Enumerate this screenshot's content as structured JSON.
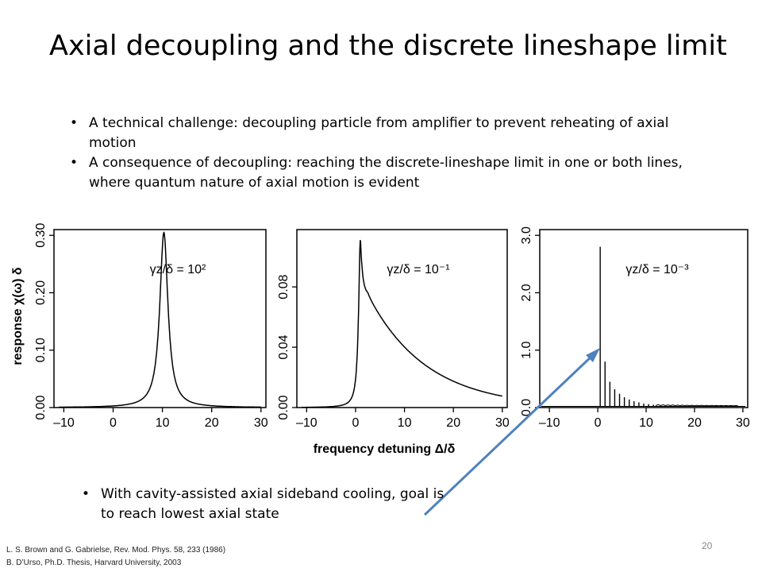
{
  "title": "Axial decoupling and the discrete lineshape limit",
  "bullets": [
    "A technical challenge: decoupling particle from amplifier to prevent reheating of axial motion",
    "A consequence of decoupling: reaching the discrete-lineshape limit in one or both lines, where quantum nature of axial motion is evident"
  ],
  "bullet_bottom": "With cavity-assisted axial sideband cooling, goal is to reach lowest axial state",
  "references": [
    "L. S. Brown and G. Gabrielse, Rev. Mod. Phys. 58, 233 (1986)",
    "B. D’Urso, Ph.D. Thesis, Harvard University, 2003"
  ],
  "page_number": "20",
  "colors": {
    "arrow": "#4f81bd",
    "curve": "#000000"
  },
  "chart_data": [
    {
      "type": "line",
      "ylabel": "response  χ(ω) δ",
      "xlabel": "frequency detuning  Δ/δ",
      "annotation": "γz/δ = 10²",
      "xlim": [
        -12,
        31
      ],
      "ylim": [
        0,
        0.31
      ],
      "x_ticks": [
        "–10",
        "0",
        "10",
        "20",
        "30"
      ],
      "y_ticks": [
        "0.00",
        "0.10",
        "0.20",
        "0.30"
      ],
      "y_tick_values": [
        0,
        0.1,
        0.2,
        0.3
      ],
      "series": [
        {
          "model": "lorentzian",
          "center": 10.3,
          "halfwidth": 1.0,
          "peak": 0.305
        }
      ]
    },
    {
      "type": "line",
      "annotation": "γz/δ = 10⁻¹",
      "xlim": [
        -12,
        31
      ],
      "ylim": [
        0,
        0.118
      ],
      "x_ticks": [
        "–10",
        "0",
        "10",
        "20",
        "30"
      ],
      "y_ticks": [
        "0.00",
        "0.04",
        "0.08"
      ],
      "y_tick_values": [
        0,
        0.04,
        0.08
      ],
      "series": [
        {
          "model": "peak_with_tail",
          "center": 1.0,
          "peak": 0.112,
          "shoulder": 0.075,
          "end": 0.005
        }
      ]
    },
    {
      "type": "line",
      "annotation": "γz/δ = 10⁻³",
      "xlim": [
        -12,
        31
      ],
      "ylim": [
        0,
        3.1
      ],
      "x_ticks": [
        "–10",
        "0",
        "10",
        "20",
        "30"
      ],
      "y_ticks": [
        "0.0",
        "1.0",
        "2.0",
        "3.0"
      ],
      "y_tick_values": [
        0,
        1,
        2,
        3
      ],
      "series": [
        {
          "model": "discrete_lines",
          "first": 0.5,
          "spacing": 1.0,
          "peaks": [
            2.8,
            0.8,
            0.45,
            0.32,
            0.24,
            0.18,
            0.14,
            0.11,
            0.09,
            0.07,
            0.06,
            0.05
          ]
        }
      ]
    }
  ]
}
